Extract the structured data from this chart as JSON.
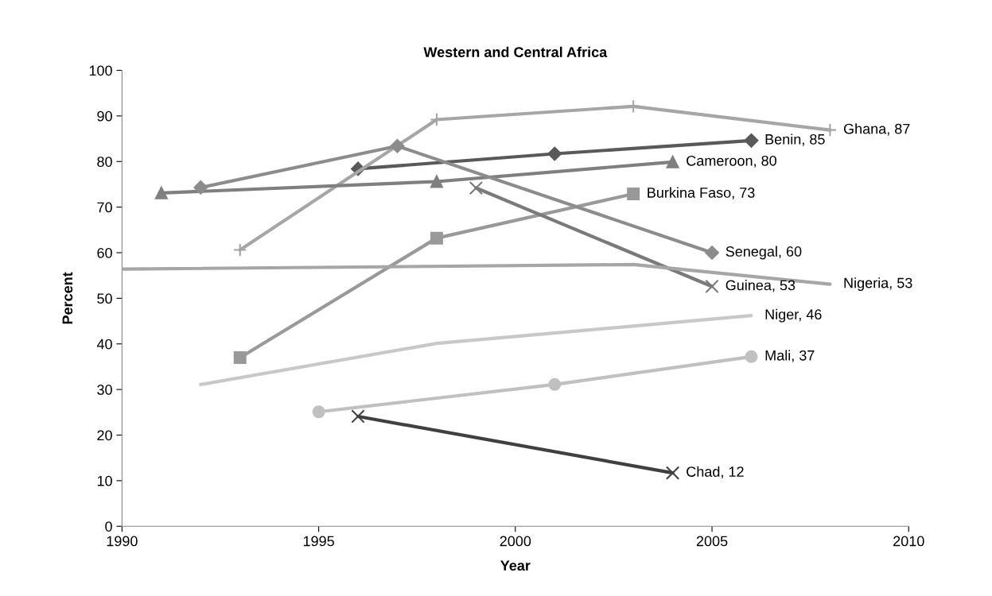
{
  "chart_data": {
    "type": "line",
    "title": "Western and Central Africa",
    "xlabel": "Year",
    "ylabel": "Percent",
    "xlim": [
      1990,
      2010
    ],
    "xticks": [
      1990,
      1995,
      2000,
      2005,
      2010
    ],
    "ylim": [
      0,
      100
    ],
    "yticks": [
      0,
      10,
      20,
      30,
      40,
      50,
      60,
      70,
      80,
      90,
      100
    ],
    "grid": false,
    "legend": false,
    "series": [
      {
        "color": "#595959",
        "marker": "diamond",
        "x": [
          1996,
          2001,
          2006
        ],
        "values": [
          78.4,
          81.7,
          84.6
        ],
        "value_labels": [
          null,
          null,
          "Benin, 85"
        ]
      },
      {
        "color": "#a6a6a6",
        "marker": "cross",
        "x": [
          1993,
          1998,
          2003,
          2008
        ],
        "values": [
          60.6,
          89.2,
          92.1,
          86.9
        ],
        "value_labels": [
          null,
          null,
          null,
          "Ghana, 87"
        ]
      },
      {
        "color": "#7f7f7f",
        "marker": "triangle",
        "x": [
          1991,
          1998,
          2004
        ],
        "values": [
          73.1,
          75.6,
          79.9
        ],
        "value_labels": [
          null,
          null,
          "Cameroon, 80"
        ]
      },
      {
        "color": "#999999",
        "marker": "square",
        "x": [
          1993,
          1998,
          2003
        ],
        "values": [
          37.0,
          63.2,
          72.9
        ],
        "value_labels": [
          null,
          null,
          "Burkina Faso, 73"
        ]
      },
      {
        "color": "#8c8c8c",
        "marker": "diamond",
        "x": [
          1992,
          1997,
          2005
        ],
        "values": [
          74.3,
          83.4,
          60.0
        ],
        "value_labels": [
          null,
          null,
          "Senegal, 60"
        ]
      },
      {
        "color": "#7a7a7a",
        "marker": "x",
        "x": [
          1999,
          2005
        ],
        "values": [
          74.2,
          52.6
        ],
        "value_labels": [
          null,
          "Guinea, 53"
        ]
      },
      {
        "color": "#a6a6a6",
        "marker": "none",
        "x": [
          1990,
          2003,
          2008
        ],
        "values": [
          56.4,
          57.4,
          53.1
        ],
        "value_labels": [
          null,
          null,
          "Nigeria, 53"
        ]
      },
      {
        "color": "#c8c8c8",
        "marker": "none",
        "x": [
          1992,
          1998,
          2006
        ],
        "values": [
          31.1,
          40.1,
          46.2
        ],
        "value_labels": [
          null,
          null,
          "Niger, 46"
        ]
      },
      {
        "color": "#c0c0c0",
        "marker": "circle",
        "x": [
          1995,
          2001,
          2006
        ],
        "values": [
          25.1,
          31.1,
          37.2
        ],
        "value_labels": [
          null,
          null,
          "Mali, 37"
        ]
      },
      {
        "color": "#404040",
        "marker": "x",
        "x": [
          1996,
          2004
        ],
        "values": [
          24.1,
          11.7
        ],
        "value_labels": [
          null,
          "Chad, 12"
        ]
      }
    ]
  }
}
